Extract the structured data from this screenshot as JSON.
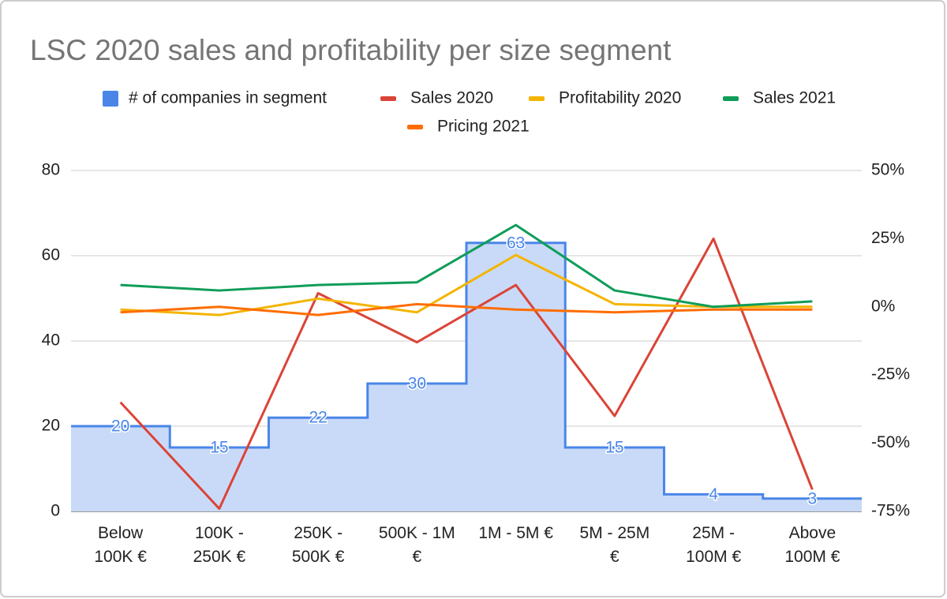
{
  "chart_data": {
    "type": "stepped-area-line",
    "title": "LSC 2020 sales and profitability per size segment",
    "categories": [
      "Below 100K €",
      "100K - 250K €",
      "250K - 500K €",
      "500K - 1M €",
      "1M - 5M €",
      "5M - 25M €",
      "25M - 100M €",
      "Above 100M €"
    ],
    "series": [
      {
        "name": "# of companies in segment",
        "color": "#4a86e8",
        "fill": "#c9daf8",
        "values": [
          20,
          15,
          22,
          30,
          63,
          15,
          4,
          3
        ]
      },
      {
        "name": "Sales 2020",
        "color": "#db4437",
        "axis": "y2",
        "values": [
          -35,
          -74,
          5,
          -13,
          8,
          -40,
          25,
          -67
        ]
      },
      {
        "name": "Profitability 2020",
        "color": "#f4b400",
        "axis": "y2",
        "values": [
          -1,
          -3,
          3,
          -2,
          19,
          1,
          0,
          0
        ]
      },
      {
        "name": "Sales 2021",
        "color": "#0f9d58",
        "axis": "y2",
        "values": [
          8,
          6,
          8,
          9,
          30,
          6,
          0,
          2
        ]
      },
      {
        "name": "Pricing 2021",
        "color": "#ff6d01",
        "axis": "y2",
        "values": [
          -2,
          0,
          -3,
          1,
          -1,
          -2,
          -1,
          -1
        ]
      }
    ],
    "ylim": [
      0,
      80
    ],
    "yticks": [
      0,
      20,
      40,
      60,
      80
    ],
    "y2lim": [
      -75,
      50
    ],
    "y2ticks": [
      {
        "value": -75,
        "label": "-75%"
      },
      {
        "value": -50,
        "label": "-50%"
      },
      {
        "value": -25,
        "label": "-25%"
      },
      {
        "value": 0,
        "label": "0%"
      },
      {
        "value": 25,
        "label": "25%"
      },
      {
        "value": 50,
        "label": "50%"
      }
    ],
    "grid": true,
    "legend": "top"
  }
}
